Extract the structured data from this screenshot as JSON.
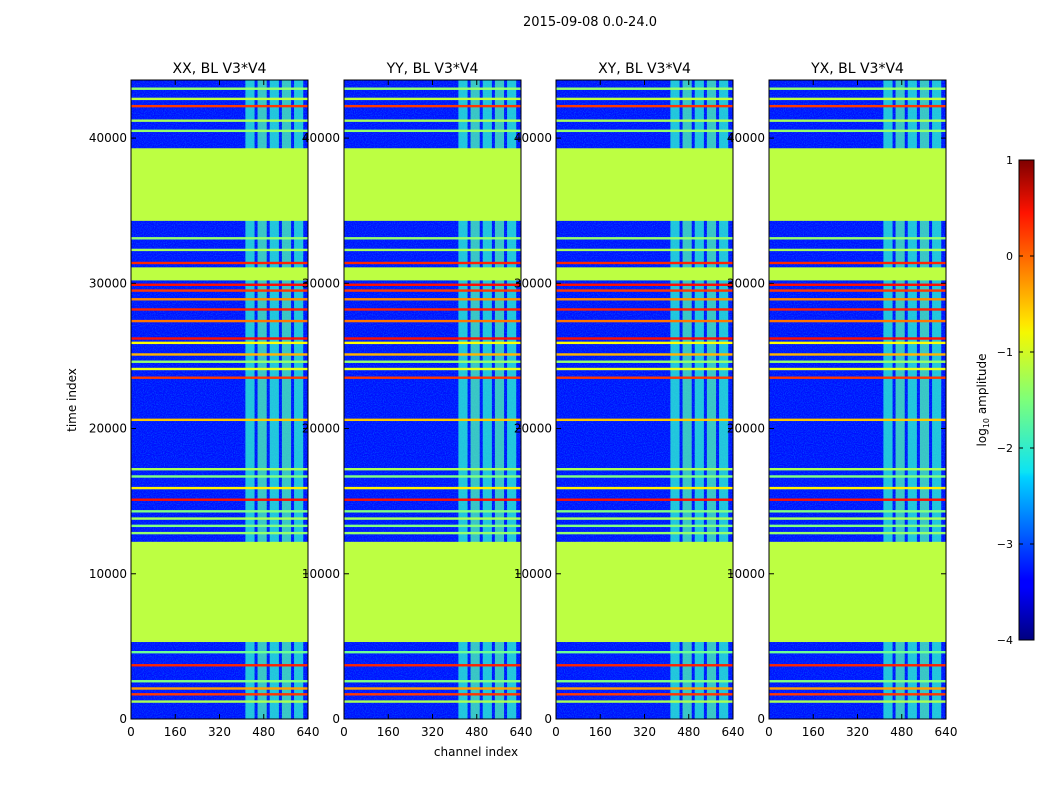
{
  "figure_title": "2015-09-08 0.0-24.0",
  "chart_data": {
    "type": "heatmap",
    "title": "2015-09-08 0.0-24.0",
    "xlabel": "channel index",
    "ylabel": "time index",
    "xlim": [
      0,
      640
    ],
    "ylim": [
      0,
      44000
    ],
    "xticks": [
      0,
      160,
      320,
      480,
      640
    ],
    "yticks": [
      0,
      10000,
      20000,
      30000,
      40000
    ],
    "xtick_labels": [
      "0",
      "160",
      "320",
      "480",
      "640"
    ],
    "ytick_labels": [
      "0",
      "10000",
      "20000",
      "30000",
      "40000"
    ],
    "colormap": "jet",
    "colorbar": {
      "label": "log10 amplitude",
      "label_main": "log",
      "label_sub": "10",
      "label_rest": " amplitude",
      "range": [
        -4,
        1
      ],
      "ticks": [
        1,
        0,
        -1,
        -2,
        -3,
        -4
      ],
      "tick_labels": [
        "1",
        "0",
        "−1",
        "−2",
        "−3",
        "−4"
      ]
    },
    "panels": [
      {
        "title": "XX, BL V3*V4",
        "polarization": "XX"
      },
      {
        "title": "YY, BL V3*V4",
        "polarization": "YY"
      },
      {
        "title": "XY, BL V3*V4",
        "polarization": "XY"
      },
      {
        "title": "YX, BL V3*V4",
        "polarization": "YX"
      }
    ],
    "background_level": -3.3,
    "flagged_level": -1.2,
    "flagged_time_ranges": [
      [
        5300,
        12200
      ],
      [
        34300,
        39300
      ],
      [
        30200,
        31100
      ]
    ],
    "bright_channel_ranges": [
      [
        410,
        630
      ]
    ],
    "horizontal_features": [
      {
        "time": 1200,
        "level": -1.3
      },
      {
        "time": 1700,
        "level": 0.1
      },
      {
        "time": 2100,
        "level": -0.4
      },
      {
        "time": 2600,
        "level": -1.5
      },
      {
        "time": 3700,
        "level": 0.2
      },
      {
        "time": 4600,
        "level": -1.6
      },
      {
        "time": 12800,
        "level": -1.4
      },
      {
        "time": 13300,
        "level": -1.5
      },
      {
        "time": 13800,
        "level": -1.3
      },
      {
        "time": 14300,
        "level": -1.5
      },
      {
        "time": 15100,
        "level": 0.3
      },
      {
        "time": 15900,
        "level": -0.8
      },
      {
        "time": 16700,
        "level": -1.5
      },
      {
        "time": 17200,
        "level": -1.3
      },
      {
        "time": 20600,
        "level": -0.6
      },
      {
        "time": 23500,
        "level": 0.1
      },
      {
        "time": 24100,
        "level": -1.0
      },
      {
        "time": 24600,
        "level": -1.4
      },
      {
        "time": 25100,
        "level": -0.5
      },
      {
        "time": 25900,
        "level": -0.9
      },
      {
        "time": 26200,
        "level": 0.3
      },
      {
        "time": 27400,
        "level": -0.2
      },
      {
        "time": 28200,
        "level": 0.2
      },
      {
        "time": 28900,
        "level": -0.3
      },
      {
        "time": 29500,
        "level": 0.1
      },
      {
        "time": 29900,
        "level": 0.3
      },
      {
        "time": 31400,
        "level": 0.2
      },
      {
        "time": 32300,
        "level": -1.3
      },
      {
        "time": 33100,
        "level": -1.4
      },
      {
        "time": 40500,
        "level": -1.4
      },
      {
        "time": 41200,
        "level": -1.3
      },
      {
        "time": 42200,
        "level": 0.1
      },
      {
        "time": 42700,
        "level": -1.2
      },
      {
        "time": 43400,
        "level": -1.4
      }
    ]
  }
}
